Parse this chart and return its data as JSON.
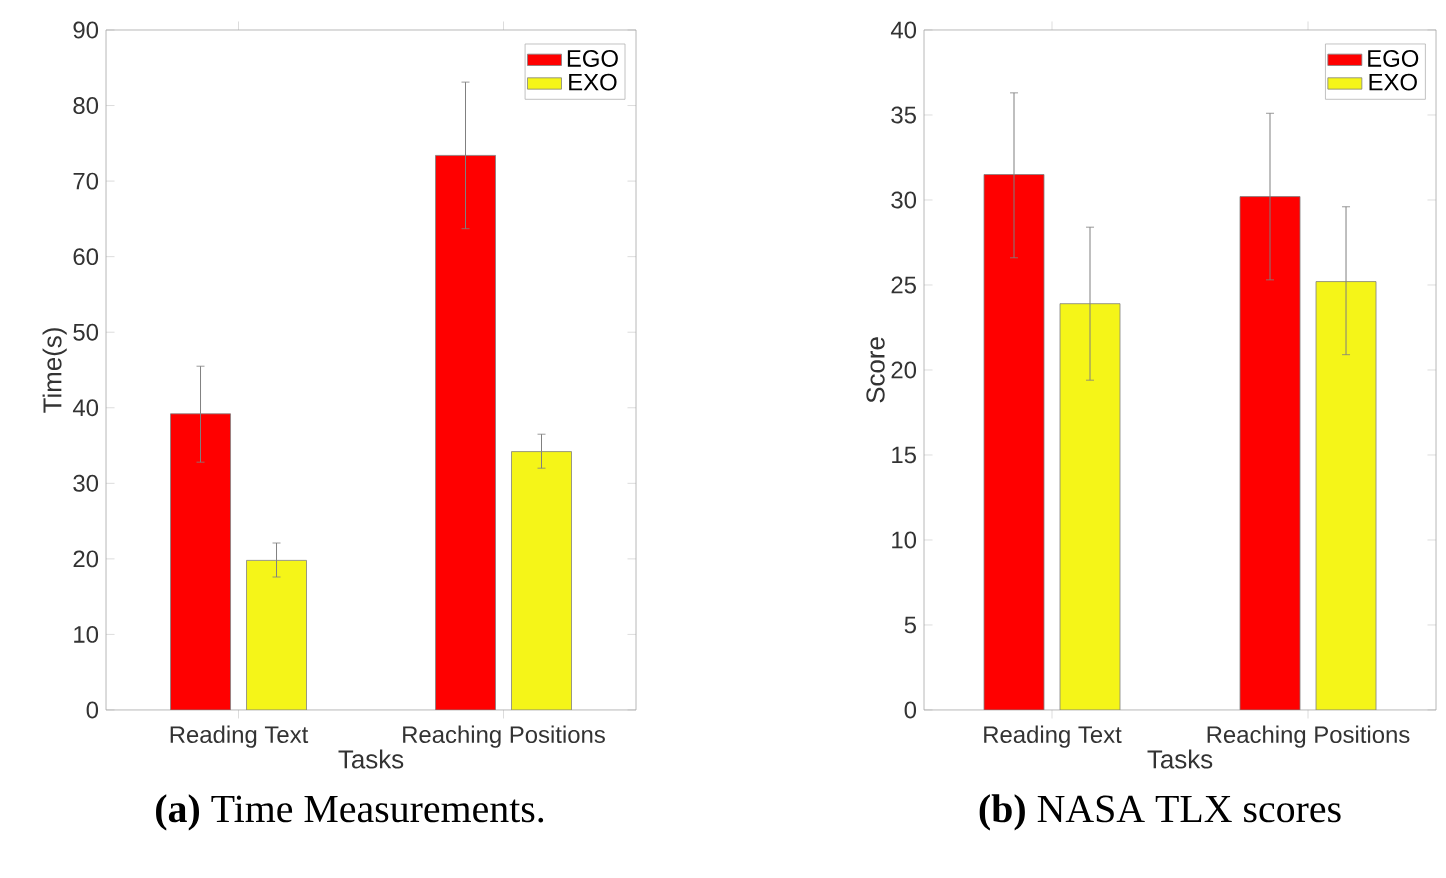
{
  "chart_data": [
    {
      "type": "bar",
      "categories": [
        "Reading Text",
        "Reaching Positions"
      ],
      "xlabel": "Tasks",
      "ylabel": "Time(s)",
      "ylim": [
        0,
        90
      ],
      "yticks": [
        0,
        10,
        20,
        30,
        40,
        50,
        60,
        70,
        80,
        90
      ],
      "legend": "top right",
      "series": [
        {
          "name": "EGO",
          "color": "#ff0000",
          "values": [
            39.2,
            73.4
          ],
          "errors": [
            [
              32.8,
              45.5
            ],
            [
              63.7,
              83.1
            ]
          ]
        },
        {
          "name": "EXO",
          "color": "#f5f518",
          "values": [
            19.8,
            34.2
          ],
          "errors": [
            [
              17.6,
              22.1
            ],
            [
              32.0,
              36.5
            ]
          ]
        }
      ],
      "annotations": [
        "**(a)** Time Measurements."
      ]
    },
    {
      "type": "bar",
      "categories": [
        "Reading Text",
        "Reaching Positions"
      ],
      "xlabel": "Tasks",
      "ylabel": "Score",
      "ylim": [
        0,
        40
      ],
      "yticks": [
        0,
        5,
        10,
        15,
        20,
        25,
        30,
        35,
        40
      ],
      "legend": "top right",
      "series": [
        {
          "name": "EGO",
          "color": "#ff0000",
          "values": [
            31.5,
            30.2
          ],
          "errors": [
            [
              26.6,
              36.3
            ],
            [
              25.3,
              35.1
            ]
          ]
        },
        {
          "name": "EXO",
          "color": "#f5f518",
          "values": [
            23.9,
            25.2
          ],
          "errors": [
            [
              19.4,
              28.4
            ],
            [
              20.9,
              29.6
            ]
          ]
        }
      ],
      "annotations": [
        "**(b)** NASA TLX scores"
      ]
    }
  ]
}
